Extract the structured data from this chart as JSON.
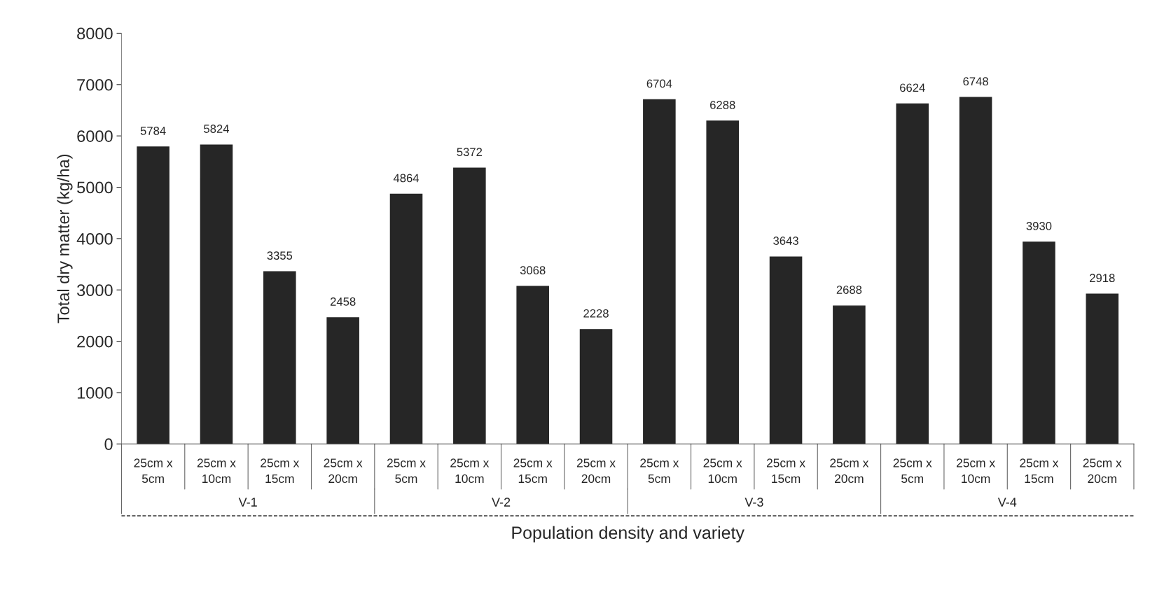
{
  "chart_data": {
    "type": "bar",
    "xlabel": "Population density and variety",
    "ylabel": "Total dry matter (kg/ha)",
    "categories": [
      "25cm x\n5cm",
      "25cm x\n10cm",
      "25cm x\n15cm",
      "25cm x\n20cm",
      "25cm x\n5cm",
      "25cm x\n10cm",
      "25cm x\n15cm",
      "25cm x\n20cm",
      "25cm x\n5cm",
      "25cm x\n10cm",
      "25cm x\n15cm",
      "25cm x\n20cm",
      "25cm x\n5cm",
      "25cm x\n10cm",
      "25cm x\n15cm",
      "25cm x\n20cm"
    ],
    "values": [
      5784,
      5824,
      3355,
      2458,
      4864,
      5372,
      3068,
      2228,
      6704,
      6288,
      3643,
      2688,
      6624,
      6748,
      3930,
      2918
    ],
    "color": "#262626",
    "data_labels": true,
    "annotations": [
      "V-1",
      "V-2",
      "V-3",
      "V-4"
    ],
    "ylim": [
      0,
      8000
    ],
    "yticks": [
      0,
      1000,
      2000,
      3000,
      4000,
      5000,
      6000,
      7000,
      8000
    ],
    "grid": false
  }
}
